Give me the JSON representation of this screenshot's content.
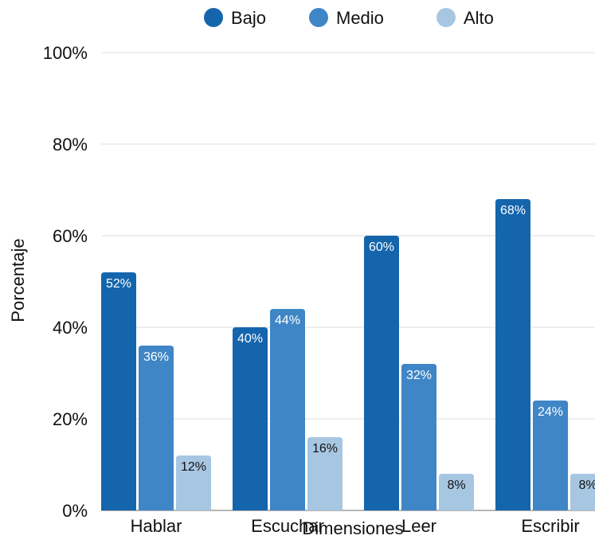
{
  "chart_data": {
    "type": "bar",
    "title": "",
    "xlabel": "Dimensiones",
    "ylabel": "Porcentaje",
    "ylim": [
      0,
      100
    ],
    "yticks": [
      0,
      20,
      40,
      60,
      80,
      100
    ],
    "ytick_format": "{v}%",
    "grid": true,
    "legend_position": "top-center",
    "categories": [
      "Hablar",
      "Escuchar",
      "Leer",
      "Escribir"
    ],
    "series": [
      {
        "name": "Bajo",
        "color": "#1565ad",
        "label_color": "#ffffff",
        "values": [
          52,
          40,
          60,
          68
        ],
        "labels": [
          "52%",
          "40%",
          "60%",
          "68%"
        ]
      },
      {
        "name": "Medio",
        "color": "#3f86c6",
        "label_color": "#ffffff",
        "values": [
          36,
          44,
          32,
          24
        ],
        "labels": [
          "36%",
          "44%",
          "32%",
          "24%"
        ]
      },
      {
        "name": "Alto",
        "color": "#a7c6e2",
        "label_color": "#111111",
        "values": [
          12,
          16,
          8,
          8
        ],
        "labels": [
          "12%",
          "16%",
          "8%",
          "8%"
        ]
      }
    ]
  }
}
